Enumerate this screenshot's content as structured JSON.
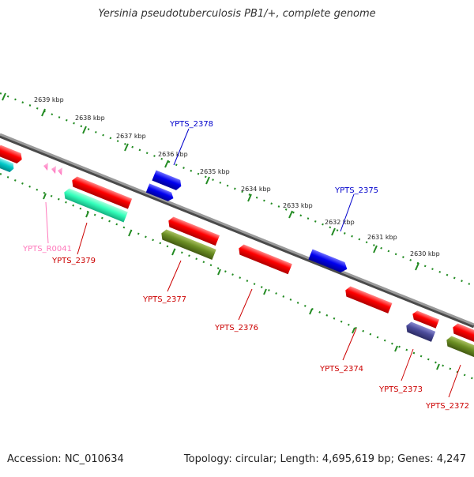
{
  "header": {
    "title": "Yersinia pseudotuberculosis PB1/+, complete genome"
  },
  "footer": {
    "accession": "Accession: NC_010634",
    "topology": "Topology: circular; Length: 4,695,619 bp; Genes: 4,247"
  },
  "ruler": {
    "kbp_labels": [
      "2639 kbp",
      "2638 kbp",
      "2637 kbp",
      "2636 kbp",
      "2635 kbp",
      "2634 kbp",
      "2633 kbp",
      "2632 kbp",
      "2631 kbp",
      "2630 kbp"
    ]
  },
  "colors": {
    "backbone": "#8a8a8a",
    "ruler_tick": "#228b22",
    "cds_red": "#ff0000",
    "cds_blue": "#0000ee",
    "cds_olive": "#6b8e23",
    "cds_cyan": "#00c8c8",
    "cds_aqua": "#33ffbb",
    "cds_slate": "#4b4b9a",
    "rrna_pink": "#ff88cc",
    "label_red": "#cc0000",
    "label_blue": "#0000cc",
    "label_pink": "#ff77bb"
  },
  "features": [
    {
      "id": "feat-left-red",
      "color": "cds_red",
      "strand": "reverse"
    },
    {
      "id": "feat-left-cyan",
      "color": "cds_cyan",
      "strand": "reverse"
    },
    {
      "id": "feat-ypts-2379-a",
      "color": "cds_red",
      "strand": "reverse"
    },
    {
      "id": "feat-ypts-2379-b",
      "color": "cds_aqua",
      "strand": "reverse"
    },
    {
      "id": "feat-ypts-2378-a",
      "color": "cds_blue",
      "strand": "forward"
    },
    {
      "id": "feat-ypts-2378-b",
      "color": "cds_blue",
      "strand": "forward"
    },
    {
      "id": "feat-ypts-2377-a",
      "color": "cds_red",
      "strand": "reverse"
    },
    {
      "id": "feat-ypts-2377-b",
      "color": "cds_olive",
      "strand": "reverse"
    },
    {
      "id": "feat-ypts-2376",
      "color": "cds_red",
      "strand": "reverse"
    },
    {
      "id": "feat-ypts-2375",
      "color": "cds_blue",
      "strand": "forward"
    },
    {
      "id": "feat-ypts-2374",
      "color": "cds_red",
      "strand": "reverse"
    },
    {
      "id": "feat-ypts-2373-a",
      "color": "cds_red",
      "strand": "reverse"
    },
    {
      "id": "feat-ypts-2373-b",
      "color": "cds_slate",
      "strand": "reverse"
    },
    {
      "id": "feat-ypts-2372-a",
      "color": "cds_red",
      "strand": "reverse"
    },
    {
      "id": "feat-ypts-2372-b",
      "color": "cds_olive",
      "strand": "reverse"
    }
  ],
  "labels": [
    {
      "id": "label-ypts-2378",
      "text": "YPTS_2378",
      "color": "label_blue"
    },
    {
      "id": "label-ypts-2375",
      "text": "YPTS_2375",
      "color": "label_blue"
    },
    {
      "id": "label-ypts-r0041",
      "text": "YPTS_R0041",
      "color": "label_pink"
    },
    {
      "id": "label-ypts-2379",
      "text": "YPTS_2379",
      "color": "label_red"
    },
    {
      "id": "label-ypts-2377",
      "text": "YPTS_2377",
      "color": "label_red"
    },
    {
      "id": "label-ypts-2376",
      "text": "YPTS_2376",
      "color": "label_red"
    },
    {
      "id": "label-ypts-2374",
      "text": "YPTS_2374",
      "color": "label_red"
    },
    {
      "id": "label-ypts-2373",
      "text": "YPTS_2373",
      "color": "label_red"
    },
    {
      "id": "label-ypts-2372",
      "text": "YPTS_2372",
      "color": "label_red"
    }
  ]
}
